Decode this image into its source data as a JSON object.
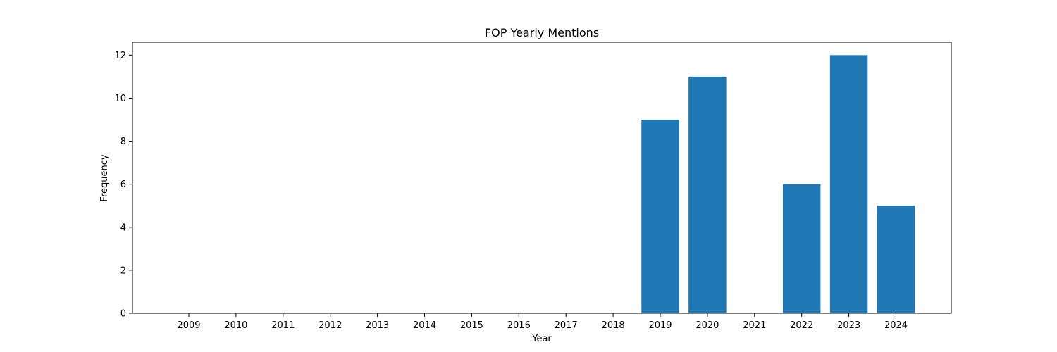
{
  "chart_data": {
    "type": "bar",
    "title": "FOP Yearly Mentions",
    "xlabel": "Year",
    "ylabel": "Frequency",
    "categories": [
      "2009",
      "2010",
      "2011",
      "2012",
      "2013",
      "2014",
      "2015",
      "2016",
      "2017",
      "2018",
      "2019",
      "2020",
      "2021",
      "2022",
      "2023",
      "2024"
    ],
    "values": [
      0,
      0,
      0,
      0,
      0,
      0,
      0,
      0,
      0,
      0,
      9,
      11,
      0,
      6,
      12,
      5
    ],
    "yticks": [
      0,
      2,
      4,
      6,
      8,
      10,
      12
    ],
    "ylim": [
      0,
      12.6
    ],
    "grid": false,
    "legend": "none",
    "bar_color": "#1f77b4"
  }
}
